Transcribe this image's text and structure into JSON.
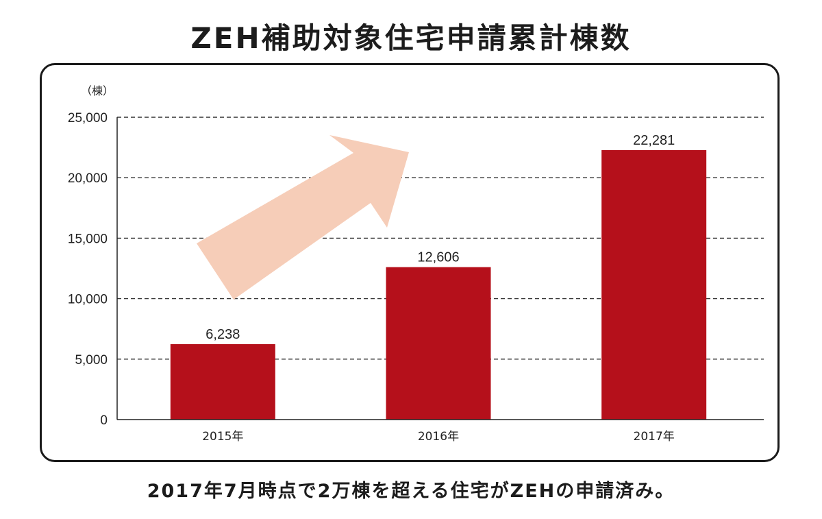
{
  "chart_data": {
    "type": "bar",
    "title": "ZEH補助対象住宅申請累計棟数",
    "unit_label": "（棟）",
    "categories": [
      "2015年",
      "2016年",
      "2017年"
    ],
    "values": [
      6238,
      12606,
      22281
    ],
    "value_labels": [
      "6,238",
      "12,606",
      "22,281"
    ],
    "ylim": [
      0,
      25000
    ],
    "yticks": [
      0,
      5000,
      10000,
      15000,
      20000,
      25000
    ],
    "ytick_labels": [
      "0",
      "5,000",
      "10,000",
      "15,000",
      "20,000",
      "25,000"
    ],
    "grid": "dashed horizontal",
    "bar_color": "#b5101b",
    "arrow_color": "#f6cdb8",
    "caption": "2017年7月時点で2万棟を超える住宅がZEHの申請済み。"
  }
}
